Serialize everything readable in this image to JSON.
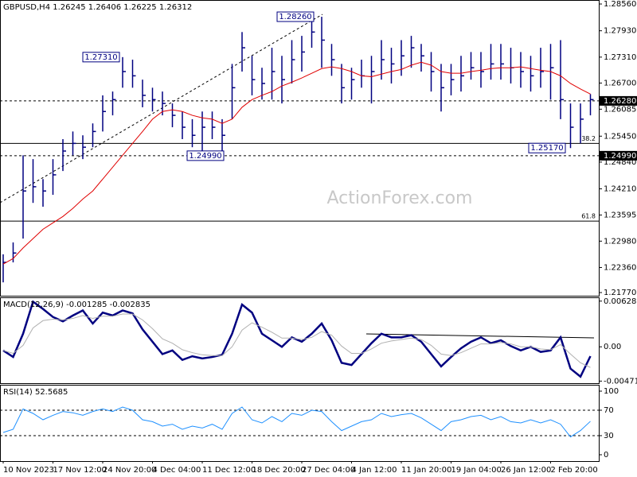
{
  "chart_data": [
    {
      "type": "ohlc",
      "title": "GBPUSD,H4 1.26245 1.26406 1.26225 1.26312",
      "watermark": "ActionForex.com",
      "color": "#000080",
      "high": [
        1.2267,
        1.2295,
        1.25,
        1.2491,
        1.2444,
        1.2491,
        1.2538,
        1.2556,
        1.2547,
        1.2575,
        1.2641,
        1.265,
        1.2731,
        1.2725,
        1.2678,
        1.2659,
        1.265,
        1.2622,
        1.2603,
        1.2585,
        1.2603,
        1.2603,
        1.2585,
        1.2715,
        1.279,
        1.2734,
        1.2706,
        1.2753,
        1.2734,
        1.2771,
        1.2781,
        1.2818,
        1.2826,
        1.2762,
        1.2715,
        1.2706,
        1.2725,
        1.2734,
        1.2771,
        1.2753,
        1.2771,
        1.2781,
        1.2762,
        1.2743,
        1.2715,
        1.2715,
        1.2734,
        1.2743,
        1.2743,
        1.2762,
        1.2762,
        1.2753,
        1.2743,
        1.2734,
        1.2753,
        1.2762,
        1.2771,
        1.2622,
        1.2622,
        1.2644
      ],
      "low": [
        1.2201,
        1.2248,
        1.2304,
        1.2388,
        1.2379,
        1.2407,
        1.2463,
        1.25,
        1.2491,
        1.2519,
        1.2556,
        1.2594,
        1.2659,
        1.2659,
        1.2613,
        1.2603,
        1.2594,
        1.2566,
        1.2538,
        1.2519,
        1.2499,
        1.2538,
        1.251,
        1.2585,
        1.2697,
        1.2641,
        1.2631,
        1.2631,
        1.2622,
        1.2669,
        1.2697,
        1.2753,
        1.2706,
        1.2687,
        1.2622,
        1.2631,
        1.2659,
        1.2622,
        1.2678,
        1.2669,
        1.2687,
        1.2706,
        1.2697,
        1.265,
        1.2603,
        1.2641,
        1.265,
        1.2678,
        1.2659,
        1.2678,
        1.2678,
        1.2669,
        1.2659,
        1.265,
        1.2659,
        1.2631,
        1.2585,
        1.2517,
        1.2528,
        1.2594
      ],
      "close": [
        1.2248,
        1.227,
        1.2416,
        1.2426,
        1.2416,
        1.2454,
        1.251,
        1.2528,
        1.2519,
        1.2556,
        1.2603,
        1.2631,
        1.2697,
        1.2687,
        1.2641,
        1.2631,
        1.2622,
        1.2594,
        1.2566,
        1.2547,
        1.2566,
        1.2566,
        1.2547,
        1.2659,
        1.2753,
        1.2678,
        1.2669,
        1.2697,
        1.2678,
        1.2725,
        1.2743,
        1.279,
        1.2771,
        1.2725,
        1.2659,
        1.2678,
        1.2687,
        1.2697,
        1.2725,
        1.2715,
        1.2734,
        1.2753,
        1.2734,
        1.2697,
        1.2659,
        1.2678,
        1.2687,
        1.2706,
        1.2697,
        1.2715,
        1.2715,
        1.2706,
        1.2697,
        1.2687,
        1.2697,
        1.2706,
        1.2631,
        1.2566,
        1.2585,
        1.2631
      ],
      "series": [
        {
          "color": "#e00000",
          "values": [
            1.2244,
            1.2257,
            1.2282,
            1.2304,
            1.2326,
            1.2341,
            1.2356,
            1.2375,
            1.2397,
            1.2416,
            1.2444,
            1.2472,
            1.25,
            1.2528,
            1.2556,
            1.2585,
            1.2603,
            1.2607,
            1.2603,
            1.2594,
            1.2588,
            1.2585,
            1.2575,
            1.2585,
            1.2613,
            1.2631,
            1.2641,
            1.265,
            1.2663,
            1.2672,
            1.2682,
            1.2693,
            1.2704,
            1.2708,
            1.2704,
            1.2697,
            1.2687,
            1.2685,
            1.2691,
            1.2697,
            1.2702,
            1.2712,
            1.2719,
            1.2712,
            1.2697,
            1.2693,
            1.2693,
            1.2697,
            1.27,
            1.2704,
            1.2706,
            1.2706,
            1.2708,
            1.2704,
            1.27,
            1.2697,
            1.2687,
            1.2669,
            1.2656,
            1.2644
          ]
        }
      ],
      "ylim": [
        1.21695,
        1.28654
      ],
      "yticks": [
        {
          "value": 1.2856,
          "label": "1.28560"
        },
        {
          "value": 1.2793,
          "label": "1.27930"
        },
        {
          "value": 1.2731,
          "label": "1.27310"
        },
        {
          "value": 1.267,
          "label": "1.26700"
        },
        1.26085,
        {
          "value": 1.2545,
          "label": "1.25450"
        },
        {
          "value": 1.2484,
          "label": "1.24840"
        },
        {
          "value": 1.2421,
          "label": "1.24210"
        },
        1.23595,
        {
          "value": 1.2298,
          "label": "1.22980"
        },
        {
          "value": 1.2236,
          "label": "1.22360"
        },
        {
          "value": 1.2177,
          "label": "1.21770"
        }
      ],
      "levels": [
        {
          "price": 1.2628,
          "text": "1.26280",
          "dashed": true,
          "boxed": true
        },
        {
          "price": 1.2499,
          "text": "1.24990",
          "dashed": true,
          "boxed": true
        },
        {
          "price": 1.2528,
          "text": "38.2",
          "dashed": false,
          "boxed": false
        },
        {
          "price": 1.2345,
          "text": "61.8",
          "dashed": false,
          "boxed": false
        }
      ],
      "annotations": [
        {
          "value": 1.2826,
          "label": "1.28260"
        },
        {
          "value": 1.2731,
          "label": "1.27310"
        },
        {
          "value": 1.2499,
          "label": "1.24990"
        },
        {
          "value": 1.2517,
          "label": "1.25170"
        }
      ]
    },
    {
      "type": "line",
      "title": "MACD(12,26,9) -0.001285 -0.002835",
      "series": [
        {
          "color": "#000080",
          "values": [
            -0.0005,
            -0.0014,
            0.0018,
            0.0062,
            0.0052,
            0.0041,
            0.0035,
            0.0043,
            0.005,
            0.0032,
            0.0047,
            0.0043,
            0.005,
            0.0046,
            0.0024,
            0.0007,
            -0.001,
            -0.0005,
            -0.0018,
            -0.0013,
            -0.0016,
            -0.0014,
            -0.0011,
            0.0018,
            0.0058,
            0.0047,
            0.0018,
            0.0009,
            0.0,
            0.0013,
            0.0007,
            0.0018,
            0.0032,
            0.0009,
            -0.0022,
            -0.0025,
            -0.001,
            0.0005,
            0.0018,
            0.0013,
            0.0013,
            0.0016,
            0.0007,
            -0.001,
            -0.0027,
            -0.0014,
            -0.0002,
            0.0007,
            0.0013,
            0.0005,
            0.0009,
            0.0001,
            -0.0005,
            0.0,
            -0.0007,
            -0.0005,
            0.0013,
            -0.003,
            -0.0041,
            -0.001285
          ]
        },
        {
          "color": "#b0b0b0",
          "values": [
            -0.0005,
            -0.0009,
            0.0002,
            0.0026,
            0.0036,
            0.0038,
            0.0037,
            0.0039,
            0.0043,
            0.0039,
            0.0042,
            0.0042,
            0.0045,
            0.0045,
            0.0037,
            0.0025,
            0.0011,
            0.0005,
            -0.0004,
            -0.0008,
            -0.0011,
            -0.0012,
            -0.0012,
            0.0,
            0.0023,
            0.0033,
            0.0027,
            0.002,
            0.0012,
            0.0012,
            0.001,
            0.0013,
            0.0021,
            0.0016,
            0.0001,
            -0.0009,
            -0.0009,
            -0.0003,
            0.0005,
            0.0008,
            0.001,
            0.0012,
            0.001,
            0.0002,
            -0.001,
            -0.0012,
            -0.0008,
            -0.0002,
            0.0004,
            0.0004,
            0.0006,
            0.0004,
            0.0,
            0.0,
            -0.0003,
            -0.0004,
            0.0003,
            -0.001,
            -0.0022,
            -0.002835
          ]
        }
      ],
      "ylim": [
        -0.005,
        0.0068
      ],
      "yticks": [
        0.006281,
        {
          "value": 0,
          "label": "0.00"
        },
        -0.004711
      ]
    },
    {
      "type": "line",
      "title": "RSI(14) 52.5685",
      "color": "#1e90ff",
      "values": [
        35,
        40,
        72,
        65,
        55,
        62,
        68,
        66,
        62,
        68,
        72,
        68,
        75,
        70,
        55,
        52,
        45,
        48,
        40,
        45,
        42,
        48,
        40,
        65,
        75,
        55,
        50,
        60,
        52,
        65,
        62,
        70,
        68,
        52,
        38,
        45,
        52,
        55,
        65,
        60,
        63,
        65,
        58,
        48,
        38,
        52,
        55,
        60,
        62,
        55,
        60,
        52,
        50,
        55,
        50,
        55,
        48,
        28,
        38,
        52.5685
      ],
      "ylim": [
        -10,
        110
      ],
      "yticks": [
        100,
        70,
        30,
        0
      ],
      "levels": [
        {
          "price": 70,
          "dashed": true
        },
        {
          "price": 30,
          "dashed": true
        }
      ],
      "categories": [
        "10 Nov 2023",
        null,
        null,
        null,
        null,
        "17 Nov 12:00",
        null,
        null,
        null,
        null,
        "24 Nov 20:00",
        null,
        null,
        null,
        null,
        "4 Dec 04:00",
        null,
        null,
        null,
        null,
        "11 Dec 12:00",
        null,
        null,
        null,
        null,
        "18 Dec 20:00",
        null,
        null,
        null,
        null,
        "27 Dec 04:00",
        null,
        null,
        null,
        null,
        "4 Jan 12:00",
        null,
        null,
        null,
        null,
        "11 Jan 20:00",
        null,
        null,
        null,
        null,
        "19 Jan 04:00",
        null,
        null,
        null,
        null,
        "26 Jan 12:00",
        null,
        null,
        null,
        null,
        "2 Feb 20:00",
        null,
        null,
        null,
        null
      ]
    }
  ]
}
